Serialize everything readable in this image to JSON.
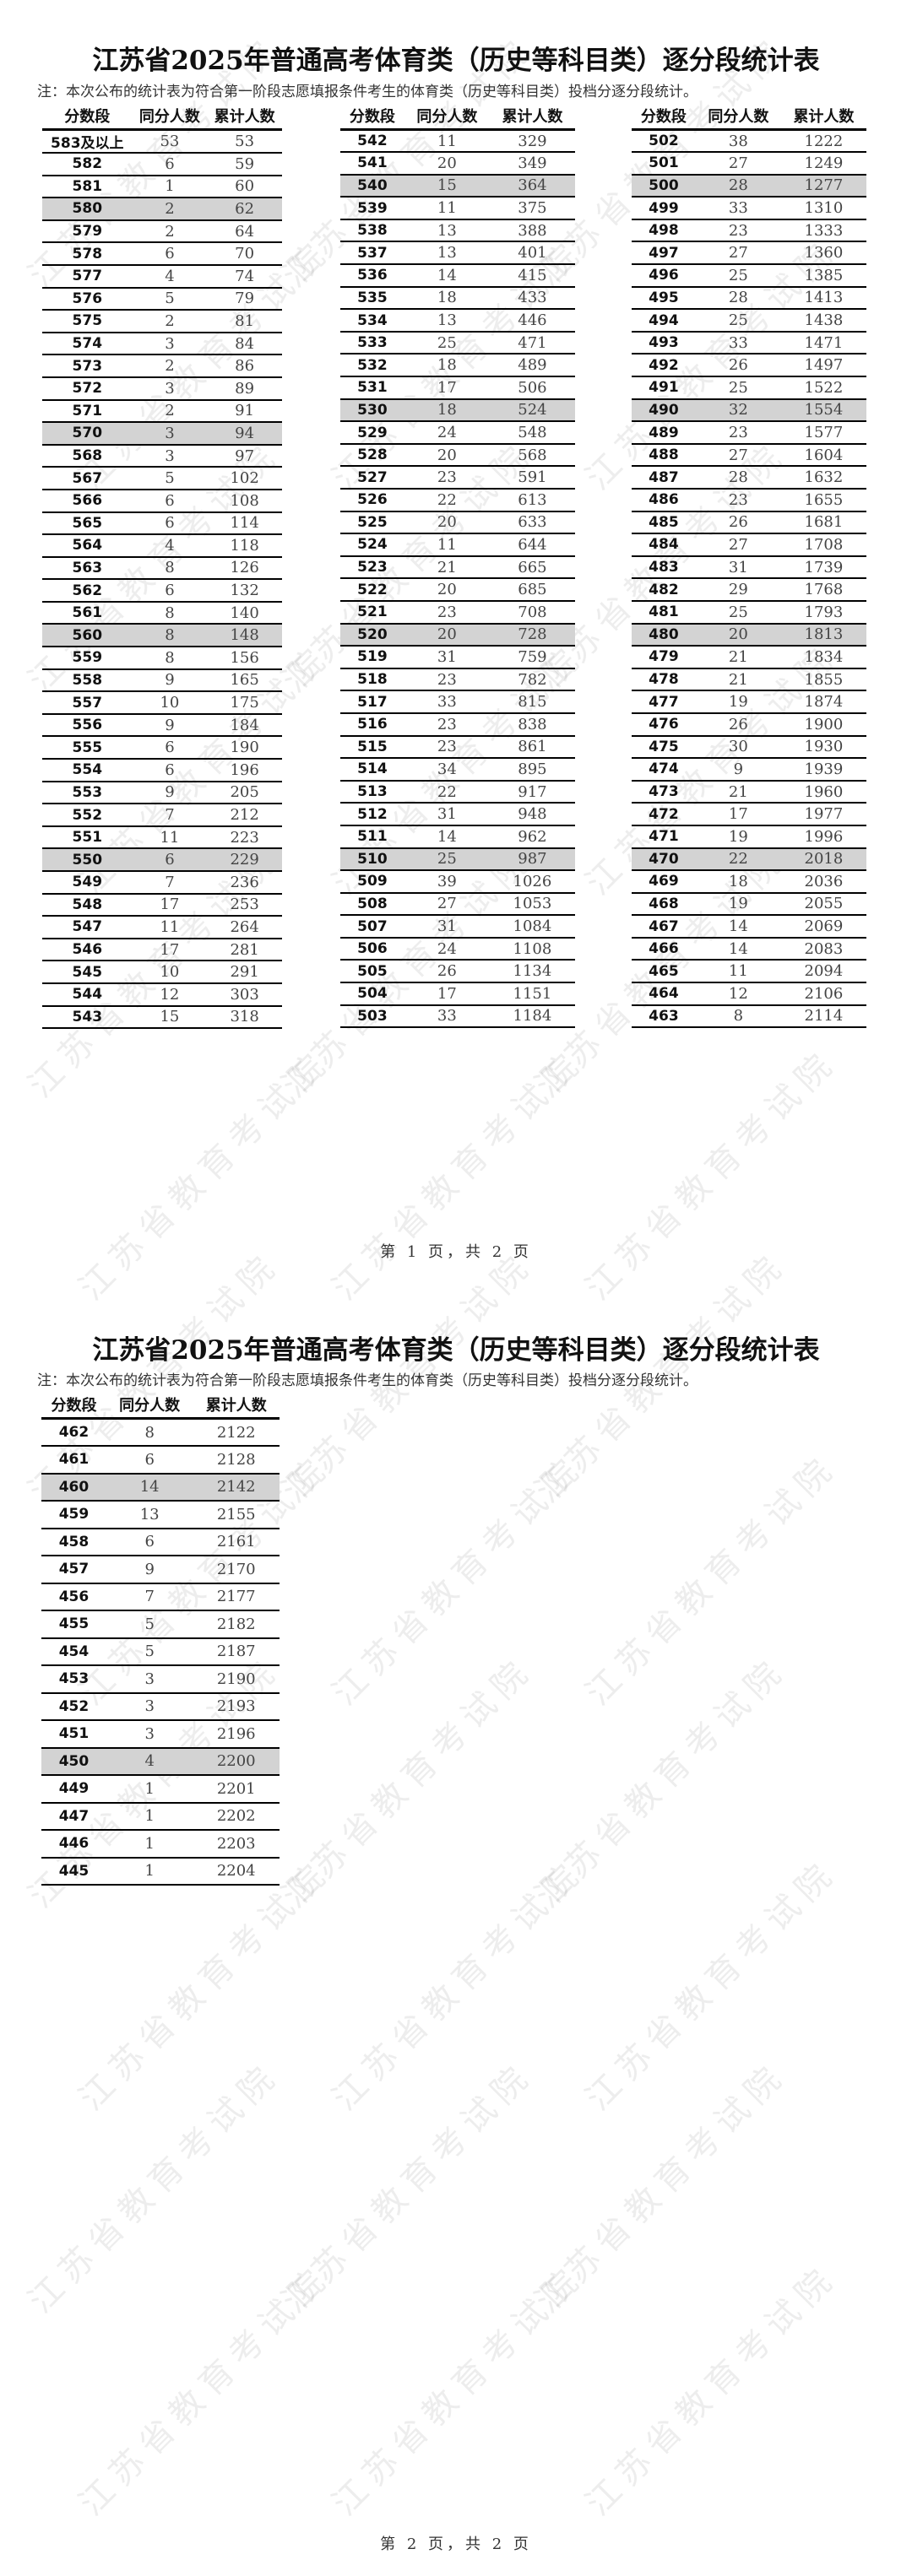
{
  "watermark": "江苏省教育考试院",
  "title": "江苏省2025年普通高考体育类（历史等科目类）逐分段统计表",
  "note": "注：本次公布的统计表为符合第一阶段志愿填报条件考生的体育类（历史等科目类）投档分逐分段统计。",
  "headers": [
    "分数段",
    "同分人数",
    "累计人数"
  ],
  "highlight_color": "#d3d3d3",
  "pages": [
    {
      "footer": "第 1 页，共 2 页",
      "tables": [
        [
          [
            "583及以上",
            53,
            53
          ],
          [
            "582",
            6,
            59
          ],
          [
            "581",
            1,
            60
          ],
          [
            "580",
            2,
            62
          ],
          [
            "579",
            2,
            64
          ],
          [
            "578",
            6,
            70
          ],
          [
            "577",
            4,
            74
          ],
          [
            "576",
            5,
            79
          ],
          [
            "575",
            2,
            81
          ],
          [
            "574",
            3,
            84
          ],
          [
            "573",
            2,
            86
          ],
          [
            "572",
            3,
            89
          ],
          [
            "571",
            2,
            91
          ],
          [
            "570",
            3,
            94
          ],
          [
            "568",
            3,
            97
          ],
          [
            "567",
            5,
            102
          ],
          [
            "566",
            6,
            108
          ],
          [
            "565",
            6,
            114
          ],
          [
            "564",
            4,
            118
          ],
          [
            "563",
            8,
            126
          ],
          [
            "562",
            6,
            132
          ],
          [
            "561",
            8,
            140
          ],
          [
            "560",
            8,
            148
          ],
          [
            "559",
            8,
            156
          ],
          [
            "558",
            9,
            165
          ],
          [
            "557",
            10,
            175
          ],
          [
            "556",
            9,
            184
          ],
          [
            "555",
            6,
            190
          ],
          [
            "554",
            6,
            196
          ],
          [
            "553",
            9,
            205
          ],
          [
            "552",
            7,
            212
          ],
          [
            "551",
            11,
            223
          ],
          [
            "550",
            6,
            229
          ],
          [
            "549",
            7,
            236
          ],
          [
            "548",
            17,
            253
          ],
          [
            "547",
            11,
            264
          ],
          [
            "546",
            17,
            281
          ],
          [
            "545",
            10,
            291
          ],
          [
            "544",
            12,
            303
          ],
          [
            "543",
            15,
            318
          ]
        ],
        [
          [
            "542",
            11,
            329
          ],
          [
            "541",
            20,
            349
          ],
          [
            "540",
            15,
            364
          ],
          [
            "539",
            11,
            375
          ],
          [
            "538",
            13,
            388
          ],
          [
            "537",
            13,
            401
          ],
          [
            "536",
            14,
            415
          ],
          [
            "535",
            18,
            433
          ],
          [
            "534",
            13,
            446
          ],
          [
            "533",
            25,
            471
          ],
          [
            "532",
            18,
            489
          ],
          [
            "531",
            17,
            506
          ],
          [
            "530",
            18,
            524
          ],
          [
            "529",
            24,
            548
          ],
          [
            "528",
            20,
            568
          ],
          [
            "527",
            23,
            591
          ],
          [
            "526",
            22,
            613
          ],
          [
            "525",
            20,
            633
          ],
          [
            "524",
            11,
            644
          ],
          [
            "523",
            21,
            665
          ],
          [
            "522",
            20,
            685
          ],
          [
            "521",
            23,
            708
          ],
          [
            "520",
            20,
            728
          ],
          [
            "519",
            31,
            759
          ],
          [
            "518",
            23,
            782
          ],
          [
            "517",
            33,
            815
          ],
          [
            "516",
            23,
            838
          ],
          [
            "515",
            23,
            861
          ],
          [
            "514",
            34,
            895
          ],
          [
            "513",
            22,
            917
          ],
          [
            "512",
            31,
            948
          ],
          [
            "511",
            14,
            962
          ],
          [
            "510",
            25,
            987
          ],
          [
            "509",
            39,
            1026
          ],
          [
            "508",
            27,
            1053
          ],
          [
            "507",
            31,
            1084
          ],
          [
            "506",
            24,
            1108
          ],
          [
            "505",
            26,
            1134
          ],
          [
            "504",
            17,
            1151
          ],
          [
            "503",
            33,
            1184
          ]
        ],
        [
          [
            "502",
            38,
            1222
          ],
          [
            "501",
            27,
            1249
          ],
          [
            "500",
            28,
            1277
          ],
          [
            "499",
            33,
            1310
          ],
          [
            "498",
            23,
            1333
          ],
          [
            "497",
            27,
            1360
          ],
          [
            "496",
            25,
            1385
          ],
          [
            "495",
            28,
            1413
          ],
          [
            "494",
            25,
            1438
          ],
          [
            "493",
            33,
            1471
          ],
          [
            "492",
            26,
            1497
          ],
          [
            "491",
            25,
            1522
          ],
          [
            "490",
            32,
            1554
          ],
          [
            "489",
            23,
            1577
          ],
          [
            "488",
            27,
            1604
          ],
          [
            "487",
            28,
            1632
          ],
          [
            "486",
            23,
            1655
          ],
          [
            "485",
            26,
            1681
          ],
          [
            "484",
            27,
            1708
          ],
          [
            "483",
            31,
            1739
          ],
          [
            "482",
            29,
            1768
          ],
          [
            "481",
            25,
            1793
          ],
          [
            "480",
            20,
            1813
          ],
          [
            "479",
            21,
            1834
          ],
          [
            "478",
            21,
            1855
          ],
          [
            "477",
            19,
            1874
          ],
          [
            "476",
            26,
            1900
          ],
          [
            "475",
            30,
            1930
          ],
          [
            "474",
            9,
            1939
          ],
          [
            "473",
            21,
            1960
          ],
          [
            "472",
            17,
            1977
          ],
          [
            "471",
            19,
            1996
          ],
          [
            "470",
            22,
            2018
          ],
          [
            "469",
            18,
            2036
          ],
          [
            "468",
            19,
            2055
          ],
          [
            "467",
            14,
            2069
          ],
          [
            "466",
            14,
            2083
          ],
          [
            "465",
            11,
            2094
          ],
          [
            "464",
            12,
            2106
          ],
          [
            "463",
            8,
            2114
          ]
        ]
      ]
    },
    {
      "footer": "第 2 页，共 2 页",
      "tables": [
        [
          [
            "462",
            8,
            2122
          ],
          [
            "461",
            6,
            2128
          ],
          [
            "460",
            14,
            2142
          ],
          [
            "459",
            13,
            2155
          ],
          [
            "458",
            6,
            2161
          ],
          [
            "457",
            9,
            2170
          ],
          [
            "456",
            7,
            2177
          ],
          [
            "455",
            5,
            2182
          ],
          [
            "454",
            5,
            2187
          ],
          [
            "453",
            3,
            2190
          ],
          [
            "452",
            3,
            2193
          ],
          [
            "451",
            3,
            2196
          ],
          [
            "450",
            4,
            2200
          ],
          [
            "449",
            1,
            2201
          ],
          [
            "447",
            1,
            2202
          ],
          [
            "446",
            1,
            2203
          ],
          [
            "445",
            1,
            2204
          ]
        ]
      ]
    }
  ]
}
